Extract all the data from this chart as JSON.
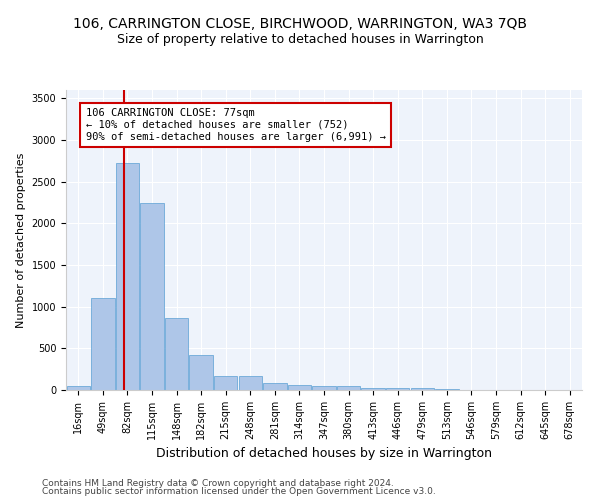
{
  "title": "106, CARRINGTON CLOSE, BIRCHWOOD, WARRINGTON, WA3 7QB",
  "subtitle": "Size of property relative to detached houses in Warrington",
  "xlabel": "Distribution of detached houses by size in Warrington",
  "ylabel": "Number of detached properties",
  "categories": [
    "16sqm",
    "49sqm",
    "82sqm",
    "115sqm",
    "148sqm",
    "182sqm",
    "215sqm",
    "248sqm",
    "281sqm",
    "314sqm",
    "347sqm",
    "380sqm",
    "413sqm",
    "446sqm",
    "479sqm",
    "513sqm",
    "546sqm",
    "579sqm",
    "612sqm",
    "645sqm",
    "678sqm"
  ],
  "values": [
    50,
    1100,
    2720,
    2250,
    870,
    420,
    170,
    165,
    90,
    60,
    50,
    45,
    30,
    25,
    20,
    10,
    5,
    5,
    3,
    2,
    2
  ],
  "bar_color": "#aec6e8",
  "bar_edgecolor": "#5a9fd4",
  "property_line_x": 1.85,
  "annotation_text": "106 CARRINGTON CLOSE: 77sqm\n← 10% of detached houses are smaller (752)\n90% of semi-detached houses are larger (6,991) →",
  "annotation_box_color": "#ffffff",
  "annotation_box_edgecolor": "#cc0000",
  "vline_color": "#cc0000",
  "footer1": "Contains HM Land Registry data © Crown copyright and database right 2024.",
  "footer2": "Contains public sector information licensed under the Open Government Licence v3.0.",
  "ylim": [
    0,
    3600
  ],
  "title_fontsize": 10,
  "subtitle_fontsize": 9,
  "xlabel_fontsize": 9,
  "ylabel_fontsize": 8,
  "tick_fontsize": 7,
  "annotation_fontsize": 7.5,
  "footer_fontsize": 6.5,
  "background_color": "#eef3fb",
  "grid_color": "#ffffff"
}
